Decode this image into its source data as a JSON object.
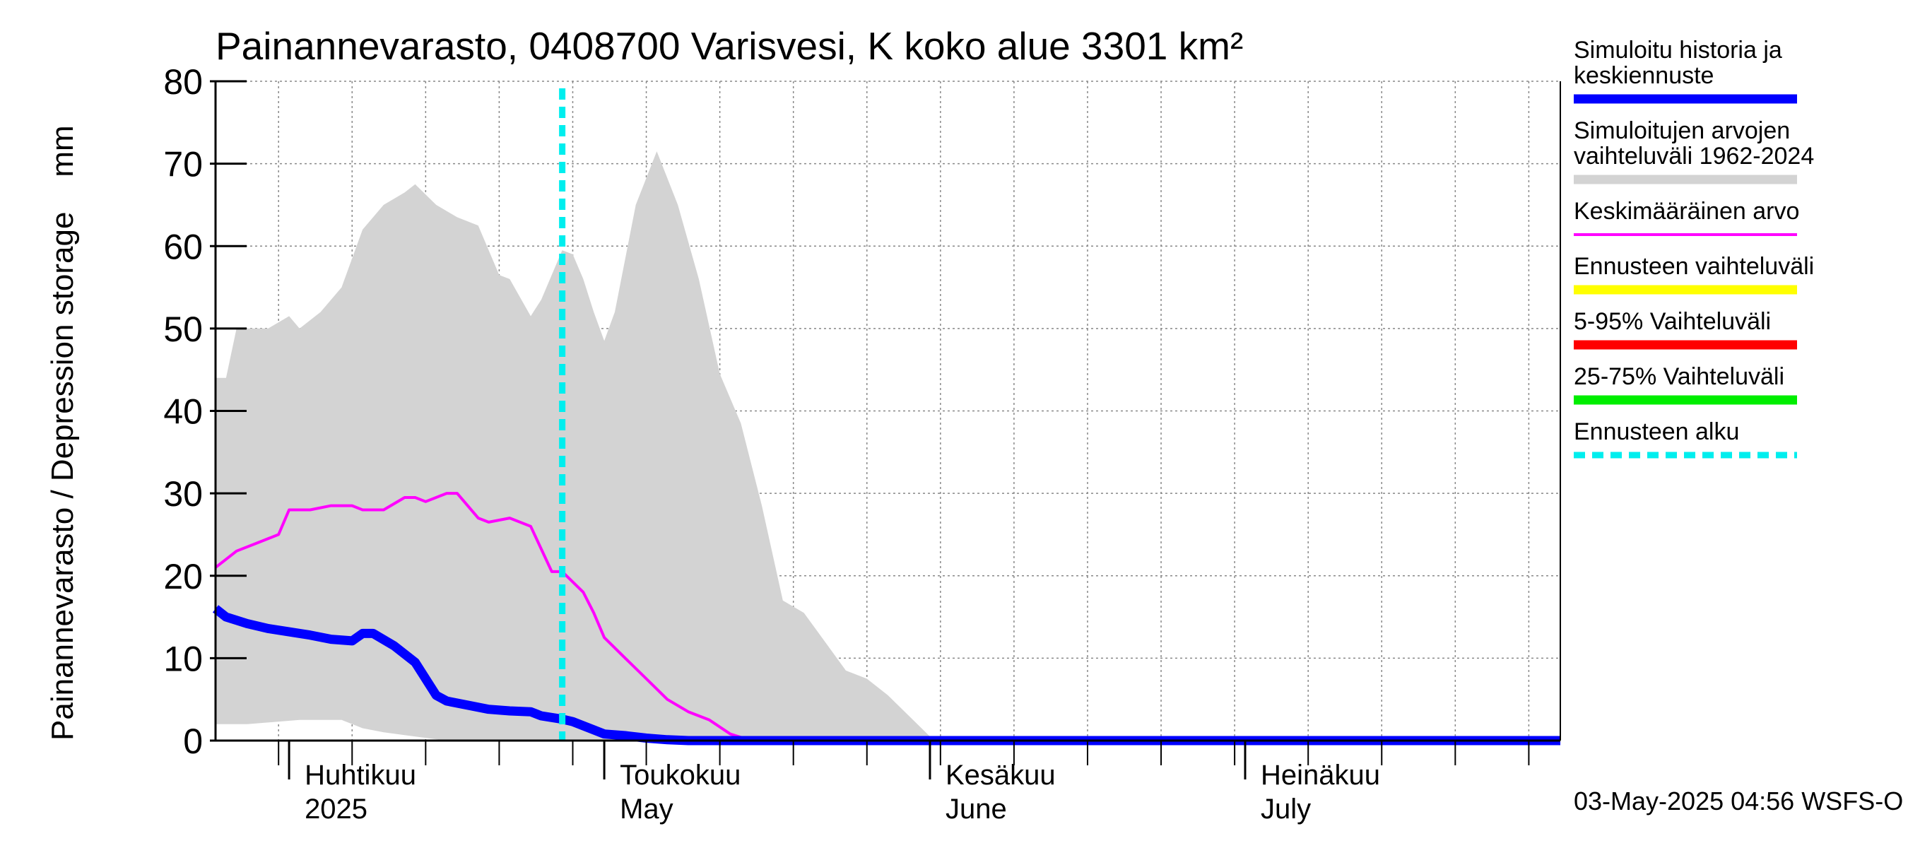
{
  "chart_data": {
    "type": "area",
    "title": "Painannevarasto, 0408700 Varisvesi, K koko alue 3301 km²",
    "ylabel": "Painannevarasto / Depression storage    mm",
    "ylim": [
      0,
      80
    ],
    "yticks": [
      0,
      10,
      20,
      30,
      40,
      50,
      60,
      70,
      80
    ],
    "xlim": [
      "2025-03-25",
      "2025-07-31"
    ],
    "x_axis_labels": [
      {
        "line1": "Huhtikuu",
        "line2": "2025",
        "date": "2025-04-01"
      },
      {
        "line1": "Toukokuu",
        "line2": "May",
        "date": "2025-05-01"
      },
      {
        "line1": "Kesäkuu",
        "line2": "June",
        "date": "2025-06-01"
      },
      {
        "line1": "Heinäkuu",
        "line2": "July",
        "date": "2025-07-01"
      }
    ],
    "grid": true,
    "legend_position": "right",
    "forecast_start": "2025-04-27",
    "series": [
      {
        "name": "Simuloitujen arvojen vaihteluväli 1962-2024",
        "kind": "band",
        "color": "#d3d3d3",
        "upper": [
          [
            "2025-03-25",
            44
          ],
          [
            "2025-03-26",
            44
          ],
          [
            "2025-03-27",
            50
          ],
          [
            "2025-03-29",
            50
          ],
          [
            "2025-03-30",
            50
          ],
          [
            "2025-04-01",
            51.5
          ],
          [
            "2025-04-02",
            50
          ],
          [
            "2025-04-04",
            52
          ],
          [
            "2025-04-06",
            55
          ],
          [
            "2025-04-08",
            62
          ],
          [
            "2025-04-10",
            65
          ],
          [
            "2025-04-12",
            66.5
          ],
          [
            "2025-04-13",
            67.5
          ],
          [
            "2025-04-15",
            65
          ],
          [
            "2025-04-17",
            63.5
          ],
          [
            "2025-04-19",
            62.5
          ],
          [
            "2025-04-21",
            56.5
          ],
          [
            "2025-04-22",
            56
          ],
          [
            "2025-04-24",
            51.5
          ],
          [
            "2025-04-25",
            53.5
          ],
          [
            "2025-04-27",
            59.5
          ],
          [
            "2025-04-28",
            59
          ],
          [
            "2025-04-29",
            56
          ],
          [
            "2025-04-30",
            52
          ],
          [
            "2025-05-01",
            48.5
          ],
          [
            "2025-05-02",
            52
          ],
          [
            "2025-05-04",
            65
          ],
          [
            "2025-05-06",
            71.5
          ],
          [
            "2025-05-08",
            65
          ],
          [
            "2025-05-10",
            56
          ],
          [
            "2025-05-12",
            44.5
          ],
          [
            "2025-05-14",
            38.5
          ],
          [
            "2025-05-16",
            28.5
          ],
          [
            "2025-05-18",
            17
          ],
          [
            "2025-05-20",
            15.5
          ],
          [
            "2025-05-22",
            12
          ],
          [
            "2025-05-24",
            8.5
          ],
          [
            "2025-05-26",
            7.5
          ],
          [
            "2025-05-28",
            5.5
          ],
          [
            "2025-05-30",
            3
          ],
          [
            "2025-06-01",
            0.5
          ],
          [
            "2025-06-02",
            0
          ],
          [
            "2025-07-31",
            0
          ]
        ],
        "lower": [
          [
            "2025-03-25",
            2
          ],
          [
            "2025-03-28",
            2
          ],
          [
            "2025-04-02",
            2.5
          ],
          [
            "2025-04-06",
            2.5
          ],
          [
            "2025-04-08",
            1.5
          ],
          [
            "2025-04-10",
            1
          ],
          [
            "2025-04-13",
            0.5
          ],
          [
            "2025-04-16",
            0
          ],
          [
            "2025-07-31",
            0
          ]
        ]
      },
      {
        "name": "Keskimääräinen arvo",
        "kind": "line",
        "color": "#ff00ff",
        "points": [
          [
            "2025-03-25",
            21
          ],
          [
            "2025-03-26",
            22
          ],
          [
            "2025-03-27",
            23
          ],
          [
            "2025-03-29",
            24
          ],
          [
            "2025-03-31",
            25
          ],
          [
            "2025-04-01",
            28
          ],
          [
            "2025-04-03",
            28
          ],
          [
            "2025-04-05",
            28.5
          ],
          [
            "2025-04-07",
            28.5
          ],
          [
            "2025-04-08",
            28
          ],
          [
            "2025-04-10",
            28
          ],
          [
            "2025-04-12",
            29.5
          ],
          [
            "2025-04-13",
            29.5
          ],
          [
            "2025-04-14",
            29
          ],
          [
            "2025-04-16",
            30
          ],
          [
            "2025-04-17",
            30
          ],
          [
            "2025-04-19",
            27
          ],
          [
            "2025-04-20",
            26.5
          ],
          [
            "2025-04-22",
            27
          ],
          [
            "2025-04-24",
            26
          ],
          [
            "2025-04-26",
            20.5
          ],
          [
            "2025-04-27",
            20.5
          ],
          [
            "2025-04-29",
            18
          ],
          [
            "2025-04-30",
            15.5
          ],
          [
            "2025-05-01",
            12.5
          ],
          [
            "2025-05-03",
            10
          ],
          [
            "2025-05-05",
            7.5
          ],
          [
            "2025-05-07",
            5
          ],
          [
            "2025-05-09",
            3.5
          ],
          [
            "2025-05-11",
            2.5
          ],
          [
            "2025-05-13",
            0.8
          ],
          [
            "2025-05-15",
            0
          ],
          [
            "2025-07-31",
            0
          ]
        ]
      },
      {
        "name": "Simuloitu historia ja keskiennuste",
        "kind": "line",
        "color": "#0000ff",
        "points": [
          [
            "2025-03-25",
            16
          ],
          [
            "2025-03-26",
            15
          ],
          [
            "2025-03-28",
            14.2
          ],
          [
            "2025-03-30",
            13.6
          ],
          [
            "2025-04-01",
            13.2
          ],
          [
            "2025-04-03",
            12.8
          ],
          [
            "2025-04-05",
            12.3
          ],
          [
            "2025-04-07",
            12.1
          ],
          [
            "2025-04-08",
            13
          ],
          [
            "2025-04-09",
            13
          ],
          [
            "2025-04-11",
            11.5
          ],
          [
            "2025-04-13",
            9.5
          ],
          [
            "2025-04-15",
            5.5
          ],
          [
            "2025-04-16",
            4.8
          ],
          [
            "2025-04-18",
            4.3
          ],
          [
            "2025-04-20",
            3.8
          ],
          [
            "2025-04-22",
            3.6
          ],
          [
            "2025-04-24",
            3.5
          ],
          [
            "2025-04-25",
            3
          ],
          [
            "2025-04-27",
            2.6
          ],
          [
            "2025-04-28",
            2.3
          ],
          [
            "2025-04-30",
            1.3
          ],
          [
            "2025-05-01",
            0.8
          ],
          [
            "2025-05-03",
            0.6
          ],
          [
            "2025-05-05",
            0.3
          ],
          [
            "2025-05-07",
            0.1
          ],
          [
            "2025-05-09",
            0
          ],
          [
            "2025-07-31",
            0
          ]
        ]
      }
    ]
  },
  "legend": {
    "items": [
      {
        "label_lines": [
          "Simuloitu historia ja",
          "keskiennuste"
        ],
        "color": "#0000ff",
        "style": "thick"
      },
      {
        "label_lines": [
          "Simuloitujen arvojen",
          "vaihteluväli 1962-2024"
        ],
        "color": "#d3d3d3",
        "style": "thick"
      },
      {
        "label_lines": [
          "Keskimääräinen arvo"
        ],
        "color": "#ff00ff",
        "style": "thin"
      },
      {
        "label_lines": [
          "Ennusteen vaihteluväli"
        ],
        "color": "#ffff00",
        "style": "thick"
      },
      {
        "label_lines": [
          "5-95% Vaihteluväli"
        ],
        "color": "#ff0000",
        "style": "thick"
      },
      {
        "label_lines": [
          "25-75% Vaihteluväli"
        ],
        "color": "#00ee00",
        "style": "thick"
      },
      {
        "label_lines": [
          "Ennusteen alku"
        ],
        "color": "#00eeee",
        "style": "dashed"
      }
    ]
  },
  "footer": {
    "timestamp": "03-May-2025 04:56 WSFS-O"
  }
}
